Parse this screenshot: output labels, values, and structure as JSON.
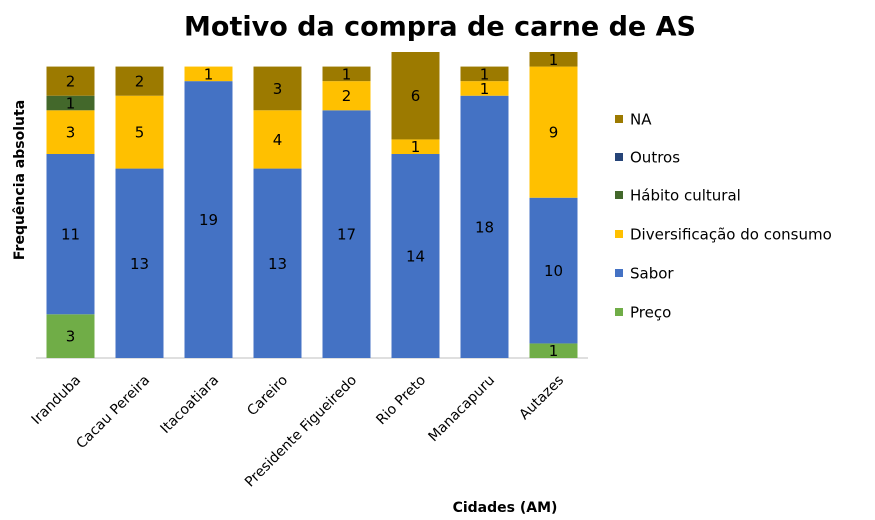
{
  "chart_data": {
    "type": "stacked-bar",
    "title": "Motivo da compra de carne de AS",
    "x_label": "Cidades (AM)",
    "y_label": "Frequência absoluta",
    "categories": [
      "Iranduba",
      "Cacau Pereira",
      "Itacoatiara",
      "Careiro",
      "Presidente Figueiredo",
      "Rio Preto",
      "Manacapuru",
      "Autazes"
    ],
    "ylim": [
      0,
      21
    ],
    "series": [
      {
        "name": "Preço",
        "color": "#70ad47",
        "values": [
          3,
          null,
          null,
          null,
          null,
          null,
          null,
          1
        ]
      },
      {
        "name": "Sabor",
        "color": "#4472c4",
        "values": [
          11,
          13,
          19,
          13,
          17,
          14,
          18,
          10
        ]
      },
      {
        "name": "Diversificação do consumo",
        "color": "#ffc000",
        "values": [
          3,
          5,
          1,
          4,
          2,
          1,
          1,
          9
        ]
      },
      {
        "name": "Hábito cultural",
        "color": "#43682b",
        "values": [
          1,
          null,
          null,
          null,
          null,
          null,
          null,
          null
        ]
      },
      {
        "name": "Outros",
        "color": "#264478",
        "values": [
          null,
          null,
          null,
          null,
          null,
          null,
          null,
          null
        ]
      },
      {
        "name": "NA",
        "color": "#9c7a00",
        "values": [
          2,
          2,
          null,
          3,
          1,
          6,
          1,
          1
        ]
      }
    ]
  }
}
